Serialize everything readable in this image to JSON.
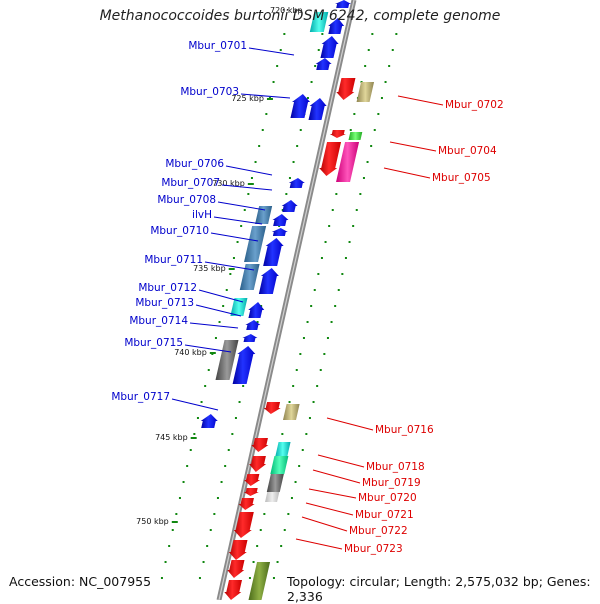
{
  "title": "Methanococcoides burtonii DSM 6242, complete genome",
  "accession_text": "Accession: NC_007955",
  "topology_text": "Topology: circular; Length: 2,575,032 bp; Genes: 2,336",
  "top_cut_label": "720 kbp",
  "ticks": [
    {
      "label": "725 kbp"
    },
    {
      "label": "730 kbp"
    },
    {
      "label": "735 kbp"
    },
    {
      "label": "740 kbp"
    },
    {
      "label": "745 kbp"
    },
    {
      "label": "750 kbp"
    }
  ],
  "left_genes": [
    {
      "label": "Mbur_0701"
    },
    {
      "label": "Mbur_0703"
    },
    {
      "label": "Mbur_0706"
    },
    {
      "label": "Mbur_0707"
    },
    {
      "label": "Mbur_0708"
    },
    {
      "label": "ilvH"
    },
    {
      "label": "Mbur_0710"
    },
    {
      "label": "Mbur_0711"
    },
    {
      "label": "Mbur_0712"
    },
    {
      "label": "Mbur_0713"
    },
    {
      "label": "Mbur_0714"
    },
    {
      "label": "Mbur_0715"
    },
    {
      "label": "Mbur_0717"
    }
  ],
  "right_genes": [
    {
      "label": "Mbur_0702"
    },
    {
      "label": "Mbur_0704"
    },
    {
      "label": "Mbur_0705"
    },
    {
      "label": "Mbur_0716"
    },
    {
      "label": "Mbur_0718"
    },
    {
      "label": "Mbur_0719"
    },
    {
      "label": "Mbur_0720"
    },
    {
      "label": "Mbur_0721"
    },
    {
      "label": "Mbur_0722"
    },
    {
      "label": "Mbur_0723"
    }
  ],
  "colors": {
    "left_label": "#0000cc",
    "right_label": "#dd0000",
    "forward_gene": "#ee0000",
    "reverse_gene": "#0000ee",
    "tick_mark": "#118811",
    "backbone": "#888888"
  }
}
